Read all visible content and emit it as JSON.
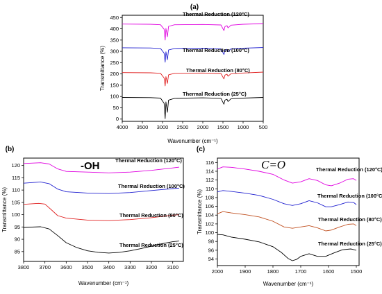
{
  "chart_data": [
    {
      "id": "a",
      "type": "line",
      "panel_letter": "(a)",
      "xlabel": "Wavenumber (cm⁻¹)",
      "ylabel": "Transmittance (%)",
      "xlim": [
        4000,
        500
      ],
      "ylim": [
        -10,
        460
      ],
      "xticks": [
        4000,
        3500,
        3000,
        2500,
        2000,
        1500,
        1000,
        500
      ],
      "yticks": [
        0,
        50,
        100,
        150,
        200,
        250,
        300,
        350,
        400,
        450
      ],
      "series": [
        {
          "label": "Thermal Reduction (120°C)",
          "color": "#e000e0",
          "baseline": 420,
          "points": [
            [
              4000,
              421
            ],
            [
              3300,
              420
            ],
            [
              3050,
              418
            ],
            [
              2960,
              398
            ],
            [
              2935,
              350
            ],
            [
              2915,
              402
            ],
            [
              2880,
              365
            ],
            [
              2850,
              411
            ],
            [
              2700,
              418
            ],
            [
              2000,
              419
            ],
            [
              1550,
              417
            ],
            [
              1475,
              392
            ],
            [
              1450,
              410
            ],
            [
              1400,
              414
            ],
            [
              1375,
              404
            ],
            [
              1300,
              416
            ],
            [
              1000,
              420
            ],
            [
              500,
              423
            ]
          ]
        },
        {
          "label": "Thermal Reduction (100°C)",
          "color": "#2020d0",
          "baseline": 315,
          "points": [
            [
              4000,
              316
            ],
            [
              3300,
              315
            ],
            [
              3050,
              313
            ],
            [
              2960,
              292
            ],
            [
              2935,
              252
            ],
            [
              2915,
              298
            ],
            [
              2880,
              263
            ],
            [
              2850,
              306
            ],
            [
              2700,
              313
            ],
            [
              2000,
              314
            ],
            [
              1550,
              312
            ],
            [
              1475,
              286
            ],
            [
              1450,
              305
            ],
            [
              1400,
              309
            ],
            [
              1375,
              299
            ],
            [
              1300,
              311
            ],
            [
              1000,
              314
            ],
            [
              500,
              317
            ]
          ]
        },
        {
          "label": "Thermal Reduction (80°C)",
          "color": "#e02020",
          "baseline": 205,
          "points": [
            [
              4000,
              206
            ],
            [
              3300,
              205
            ],
            [
              3050,
              203
            ],
            [
              2960,
              182
            ],
            [
              2935,
              147
            ],
            [
              2915,
              188
            ],
            [
              2880,
              158
            ],
            [
              2850,
              196
            ],
            [
              2700,
              203
            ],
            [
              2000,
              204
            ],
            [
              1550,
              202
            ],
            [
              1475,
              178
            ],
            [
              1450,
              195
            ],
            [
              1400,
              199
            ],
            [
              1375,
              190
            ],
            [
              1300,
              201
            ],
            [
              1000,
              204
            ],
            [
              500,
              208
            ]
          ]
        },
        {
          "label": "Thermal Reduction (25°C)",
          "color": "#000000",
          "baseline": 95,
          "points": [
            [
              4000,
              96
            ],
            [
              3300,
              95
            ],
            [
              3050,
              93
            ],
            [
              2960,
              70
            ],
            [
              2935,
              2
            ],
            [
              2915,
              76
            ],
            [
              2880,
              30
            ],
            [
              2850,
              84
            ],
            [
              2700,
              92
            ],
            [
              2000,
              94
            ],
            [
              1550,
              92
            ],
            [
              1475,
              66
            ],
            [
              1450,
              84
            ],
            [
              1400,
              88
            ],
            [
              1375,
              78
            ],
            [
              1300,
              90
            ],
            [
              1000,
              93
            ],
            [
              500,
              96
            ]
          ]
        }
      ]
    },
    {
      "id": "b",
      "type": "line",
      "panel_letter": "(b)",
      "annotation": "-OH",
      "xlabel": "Wavenumber (cm⁻¹)",
      "ylabel": "Transmittance (%)",
      "xlim": [
        3800,
        3050
      ],
      "ylim": [
        81,
        123
      ],
      "xticks": [
        3800,
        3700,
        3600,
        3500,
        3400,
        3300,
        3200,
        3100
      ],
      "yticks": [
        85,
        90,
        95,
        100,
        105,
        110,
        115,
        120
      ],
      "series": [
        {
          "label": "Thermal Reduction (120°C)",
          "color": "#e000e0",
          "points": [
            [
              3800,
              120.8
            ],
            [
              3720,
              121.1
            ],
            [
              3680,
              120.6
            ],
            [
              3640,
              118.6
            ],
            [
              3600,
              117.6
            ],
            [
              3500,
              117.3
            ],
            [
              3400,
              117.0
            ],
            [
              3300,
              117.3
            ],
            [
              3200,
              118.0
            ],
            [
              3100,
              119.0
            ],
            [
              3070,
              119.3
            ]
          ]
        },
        {
          "label": "Thermal Reduction (100°C)",
          "color": "#2020d0",
          "points": [
            [
              3800,
              112.8
            ],
            [
              3720,
              113.3
            ],
            [
              3680,
              112.6
            ],
            [
              3640,
              110.4
            ],
            [
              3600,
              109.3
            ],
            [
              3500,
              108.8
            ],
            [
              3400,
              108.6
            ],
            [
              3300,
              109.0
            ],
            [
              3200,
              109.8
            ],
            [
              3100,
              110.6
            ],
            [
              3070,
              110.8
            ]
          ]
        },
        {
          "label": "Thermal Reduction (80°C)",
          "color": "#e02020",
          "points": [
            [
              3800,
              104.2
            ],
            [
              3730,
              104.6
            ],
            [
              3700,
              104.3
            ],
            [
              3670,
              102.0
            ],
            [
              3640,
              99.6
            ],
            [
              3600,
              98.6
            ],
            [
              3500,
              97.8
            ],
            [
              3400,
              97.6
            ],
            [
              3300,
              98.0
            ],
            [
              3200,
              98.8
            ],
            [
              3100,
              99.8
            ],
            [
              3070,
              100.0
            ]
          ]
        },
        {
          "label": "Thermal Reduction (25°C)",
          "color": "#000000",
          "points": [
            [
              3800,
              94.8
            ],
            [
              3720,
              95.1
            ],
            [
              3680,
              94.2
            ],
            [
              3640,
              91.5
            ],
            [
              3600,
              88.6
            ],
            [
              3550,
              86.6
            ],
            [
              3500,
              85.3
            ],
            [
              3450,
              84.7
            ],
            [
              3400,
              84.4
            ],
            [
              3350,
              84.7
            ],
            [
              3300,
              85.3
            ],
            [
              3250,
              86.2
            ],
            [
              3200,
              87.2
            ],
            [
              3150,
              88.2
            ],
            [
              3100,
              89.0
            ],
            [
              3070,
              89.3
            ]
          ]
        }
      ]
    },
    {
      "id": "c",
      "type": "line",
      "panel_letter": "(c)",
      "annotation": "C=O",
      "xlabel": "Wavenumber (cm⁻¹)",
      "ylabel": "Transmittance (%)",
      "xlim": [
        2000,
        1490
      ],
      "ylim": [
        92.5,
        117
      ],
      "xticks": [
        2000,
        1900,
        1800,
        1700,
        1600,
        1500
      ],
      "yticks": [
        94,
        96,
        98,
        100,
        102,
        104,
        106,
        108,
        110,
        112,
        114,
        116
      ],
      "series": [
        {
          "label": "Thermal Reduction (120°C)",
          "color": "#e000e0",
          "points": [
            [
              2000,
              114.5
            ],
            [
              1980,
              115.0
            ],
            [
              1950,
              114.9
            ],
            [
              1900,
              114.5
            ],
            [
              1850,
              114.0
            ],
            [
              1800,
              113.3
            ],
            [
              1760,
              112.0
            ],
            [
              1730,
              111.3
            ],
            [
              1700,
              111.6
            ],
            [
              1670,
              112.3
            ],
            [
              1640,
              111.9
            ],
            [
              1610,
              110.9
            ],
            [
              1590,
              110.7
            ],
            [
              1560,
              111.3
            ],
            [
              1530,
              112.2
            ],
            [
              1510,
              112.3
            ],
            [
              1500,
              111.9
            ]
          ]
        },
        {
          "label": "Thermal Reduction (100°C)",
          "color": "#2020d0",
          "points": [
            [
              2000,
              109.3
            ],
            [
              1980,
              109.6
            ],
            [
              1950,
              109.4
            ],
            [
              1900,
              109.0
            ],
            [
              1850,
              108.5
            ],
            [
              1800,
              107.6
            ],
            [
              1760,
              106.6
            ],
            [
              1730,
              106.2
            ],
            [
              1700,
              106.6
            ],
            [
              1670,
              107.3
            ],
            [
              1640,
              106.8
            ],
            [
              1610,
              105.9
            ],
            [
              1590,
              105.9
            ],
            [
              1560,
              106.4
            ],
            [
              1530,
              107.0
            ],
            [
              1510,
              106.9
            ],
            [
              1500,
              106.4
            ]
          ]
        },
        {
          "label": "Thermal Reduction (80°C)",
          "color": "#c05020",
          "points": [
            [
              2000,
              104.3
            ],
            [
              1980,
              104.8
            ],
            [
              1950,
              104.5
            ],
            [
              1900,
              104.1
            ],
            [
              1850,
              103.6
            ],
            [
              1800,
              102.6
            ],
            [
              1760,
              101.3
            ],
            [
              1730,
              101.0
            ],
            [
              1700,
              101.3
            ],
            [
              1670,
              101.6
            ],
            [
              1640,
              101.1
            ],
            [
              1610,
              100.4
            ],
            [
              1590,
              100.6
            ],
            [
              1560,
              101.3
            ],
            [
              1530,
              101.9
            ],
            [
              1510,
              102.0
            ],
            [
              1500,
              101.6
            ]
          ]
        },
        {
          "label": "Thermal Reduction (25°C)",
          "color": "#000000",
          "points": [
            [
              2000,
              99.6
            ],
            [
              1980,
              99.5
            ],
            [
              1950,
              99.0
            ],
            [
              1900,
              98.5
            ],
            [
              1850,
              97.9
            ],
            [
              1800,
              96.8
            ],
            [
              1770,
              95.5
            ],
            [
              1745,
              94.1
            ],
            [
              1730,
              93.6
            ],
            [
              1715,
              93.9
            ],
            [
              1700,
              94.6
            ],
            [
              1670,
              95.2
            ],
            [
              1640,
              94.6
            ],
            [
              1610,
              94.6
            ],
            [
              1580,
              95.4
            ],
            [
              1550,
              96.1
            ],
            [
              1520,
              96.3
            ],
            [
              1500,
              96.0
            ]
          ]
        }
      ]
    }
  ]
}
